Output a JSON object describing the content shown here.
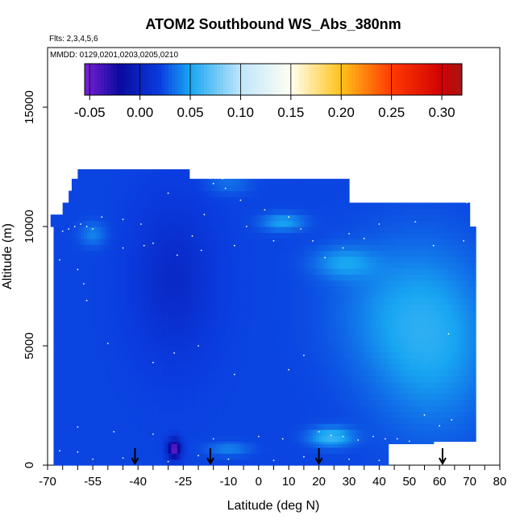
{
  "chart_data": {
    "type": "heatmap",
    "title": "ATOM2 Southbound WS_Abs_380nm",
    "flights_note": "Flts: 2,3,4,5,6",
    "date_note": "MMDD: 0129,0201,0203,0205,0210",
    "xlabel": "Latitude (deg N)",
    "ylabel": "Altitude (m)",
    "xlim": [
      -70,
      80
    ],
    "ylim": [
      0,
      17500
    ],
    "x_ticks": [
      -70,
      -55,
      -40,
      -25,
      -10,
      0,
      10,
      20,
      30,
      40,
      50,
      60,
      70,
      80
    ],
    "y_ticks": [
      0,
      5000,
      10000,
      15000
    ],
    "colorbar": {
      "ticks": [
        -0.05,
        0.0,
        0.05,
        0.1,
        0.15,
        0.2,
        0.25,
        0.3
      ],
      "tick_labels": [
        "-0.05",
        "0.00",
        "0.05",
        "0.10",
        "0.15",
        "0.20",
        "0.25",
        "0.30"
      ],
      "range": [
        -0.055,
        0.32
      ],
      "stops": [
        {
          "value": -0.055,
          "color": "#7a1fd6"
        },
        {
          "value": -0.02,
          "color": "#0a0a9e"
        },
        {
          "value": 0.02,
          "color": "#0a3de0"
        },
        {
          "value": 0.05,
          "color": "#18a6f2"
        },
        {
          "value": 0.1,
          "color": "#bfe6fb"
        },
        {
          "value": 0.15,
          "color": "#fffff2"
        },
        {
          "value": 0.2,
          "color": "#ffc21a"
        },
        {
          "value": 0.25,
          "color": "#ff3a00"
        },
        {
          "value": 0.3,
          "color": "#d20000"
        },
        {
          "value": 0.32,
          "color": "#a51616"
        }
      ]
    },
    "field": {
      "envelope": [
        {
          "y0": 0,
          "y1": 900,
          "x0": -68,
          "x1": 43
        },
        {
          "y0": 900,
          "y1": 1000,
          "x0": -68,
          "x1": 58
        },
        {
          "y0": 1000,
          "y1": 10000,
          "x0": -68,
          "x1": 72
        },
        {
          "y0": 10000,
          "y1": 10500,
          "x0": -69,
          "x1": 70
        },
        {
          "y0": 10500,
          "y1": 11000,
          "x0": -65,
          "x1": 70
        },
        {
          "y0": 11000,
          "y1": 11500,
          "x0": -63,
          "x1": 30
        },
        {
          "y0": 11500,
          "y1": 12000,
          "x0": -62,
          "x1": 30
        },
        {
          "y0": 12000,
          "y1": 12400,
          "x0": -60,
          "x1": -23
        }
      ],
      "background_value": 0.022,
      "features": [
        {
          "x": 58,
          "y": 5200,
          "sx": 14,
          "sy": 2600,
          "value": 0.05
        },
        {
          "x": 42,
          "y": 6500,
          "sx": 14,
          "sy": 2000,
          "value": 0.035
        },
        {
          "x": -28,
          "y": 7800,
          "sx": 9,
          "sy": 2200,
          "value": 0.005
        },
        {
          "x": 24,
          "y": 1200,
          "sx": 5,
          "sy": 280,
          "value": 0.06
        },
        {
          "x": 8,
          "y": 10200,
          "sx": 5,
          "sy": 250,
          "value": 0.05
        },
        {
          "x": 28,
          "y": 8500,
          "sx": 7,
          "sy": 450,
          "value": 0.045
        },
        {
          "x": -28,
          "y": 700,
          "sx": 1.5,
          "sy": 280,
          "value": -0.05
        },
        {
          "x": -55,
          "y": 9700,
          "sx": 3,
          "sy": 350,
          "value": 0.04
        },
        {
          "x": -10,
          "y": 700,
          "sx": 5,
          "sy": 200,
          "value": 0.04
        },
        {
          "x": -10,
          "y": 11800,
          "sx": 5,
          "sy": 300,
          "value": 0.035
        }
      ]
    },
    "points": [
      [
        -65,
        9800
      ],
      [
        -63,
        9900
      ],
      [
        -61,
        10000
      ],
      [
        -59,
        10100
      ],
      [
        -57,
        10000
      ],
      [
        -55,
        9900
      ],
      [
        -66,
        8600
      ],
      [
        -60,
        8200
      ],
      [
        -58,
        7600
      ],
      [
        -57,
        6900
      ],
      [
        -52,
        10400
      ],
      [
        -45,
        10300
      ],
      [
        -39,
        10100
      ],
      [
        -30,
        11400
      ],
      [
        -15,
        11800
      ],
      [
        -12,
        12000
      ],
      [
        -11,
        11600
      ],
      [
        -6,
        11100
      ],
      [
        -4,
        10000
      ],
      [
        2,
        10700
      ],
      [
        10,
        10400
      ],
      [
        14,
        9900
      ],
      [
        18,
        9400
      ],
      [
        -45,
        9100
      ],
      [
        -38,
        9200
      ],
      [
        -35,
        9300
      ],
      [
        -27,
        8800
      ],
      [
        -19,
        9000
      ],
      [
        -18,
        10500
      ],
      [
        -22,
        9600
      ],
      [
        -8,
        9200
      ],
      [
        5,
        9400
      ],
      [
        22,
        8700
      ],
      [
        30,
        9700
      ],
      [
        28,
        9100
      ],
      [
        35,
        9500
      ],
      [
        40,
        10100
      ],
      [
        52,
        10200
      ],
      [
        58,
        9200
      ],
      [
        69,
        11000
      ],
      [
        68,
        9400
      ],
      [
        63,
        5500
      ],
      [
        -50,
        5100
      ],
      [
        -35,
        4300
      ],
      [
        -20,
        5000
      ],
      [
        -28,
        4700
      ],
      [
        -8,
        3800
      ],
      [
        10,
        4000
      ],
      [
        15,
        4600
      ],
      [
        -60,
        1600
      ],
      [
        -48,
        1400
      ],
      [
        -35,
        1300
      ],
      [
        -15,
        1100
      ],
      [
        0,
        1200
      ],
      [
        8,
        1100
      ],
      [
        20,
        1400
      ],
      [
        24,
        1250
      ],
      [
        28,
        1200
      ],
      [
        33,
        1050
      ],
      [
        38,
        1200
      ],
      [
        42,
        1100
      ],
      [
        50,
        1000
      ],
      [
        55,
        2100
      ],
      [
        64,
        1900
      ],
      [
        -66,
        600
      ],
      [
        -60,
        550
      ],
      [
        -55,
        250
      ],
      [
        -45,
        300
      ],
      [
        -30,
        150
      ],
      [
        -20,
        400
      ],
      [
        -10,
        250
      ],
      [
        5,
        200
      ],
      [
        15,
        350
      ],
      [
        30,
        250
      ],
      [
        40,
        200
      ],
      [
        60,
        1650
      ],
      [
        46,
        1100
      ]
    ],
    "arrows_lat": [
      -41,
      -16,
      20,
      61
    ]
  }
}
